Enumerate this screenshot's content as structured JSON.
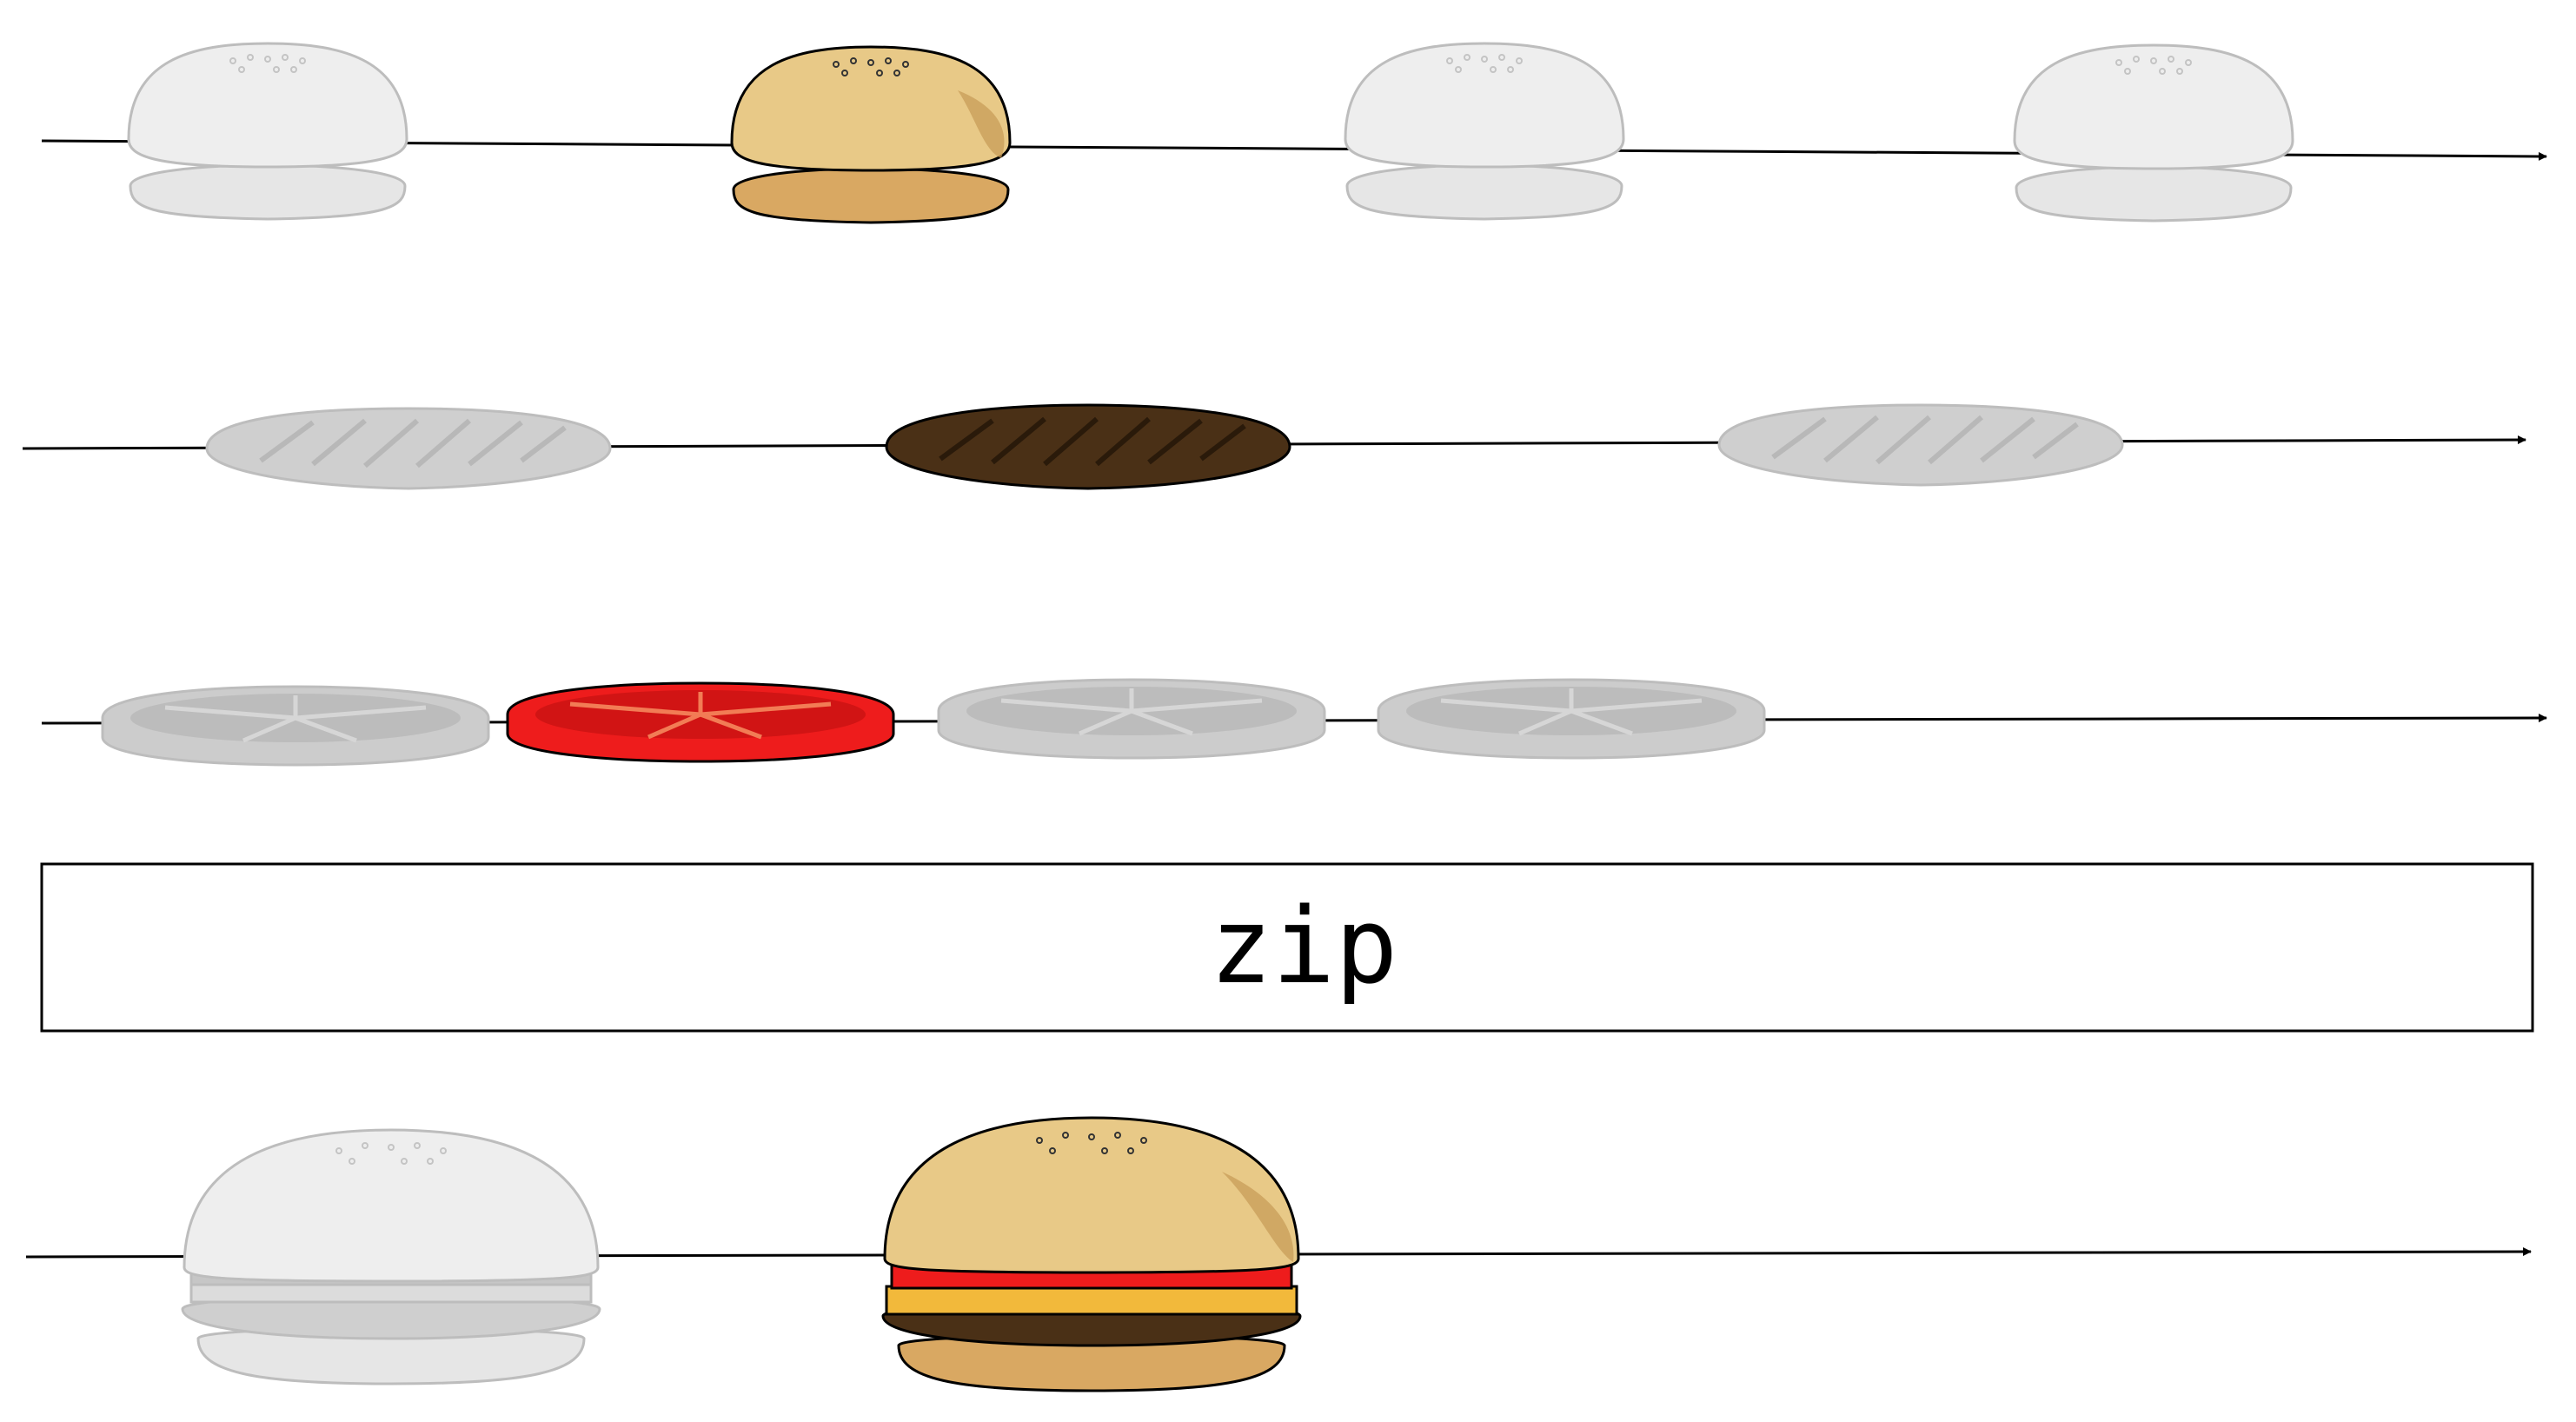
{
  "operator": {
    "label": "zip"
  },
  "streams": [
    {
      "id": "buns",
      "item": "bun-icon",
      "count": 4,
      "active_index": 1
    },
    {
      "id": "patties",
      "item": "patty-icon",
      "count": 3,
      "active_index": 1
    },
    {
      "id": "tomatoes",
      "item": "tomato-slice-icon",
      "count": 4,
      "active_index": 1
    }
  ],
  "output": {
    "id": "burgers",
    "item": "burger-icon",
    "count": 2,
    "active_index": 1
  },
  "colors": {
    "line": "#000000",
    "faded_fill": "#e6e6e6",
    "faded_stroke": "#bdbdbd",
    "bun_top": "#e8c987",
    "bun_bottom": "#d9a862",
    "patty": "#4a3016",
    "tomato": "#ee1c1c",
    "tomato_inner": "#d11414",
    "cheese": "#f2b93b"
  }
}
